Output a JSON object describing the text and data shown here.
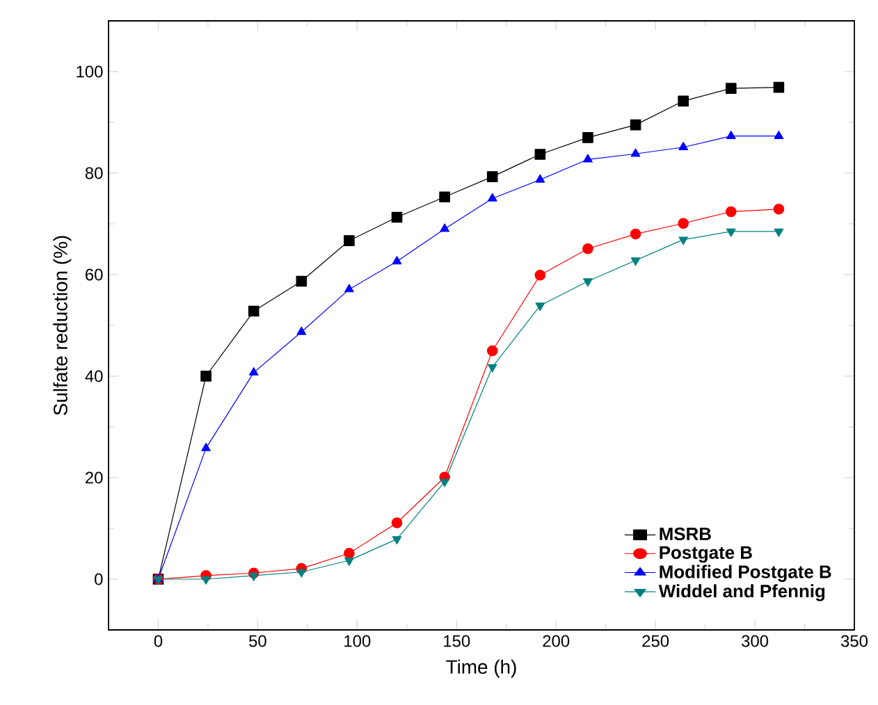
{
  "chart_data": {
    "type": "line",
    "xlabel": "Time (h)",
    "ylabel": "Sulfate reduction (%)",
    "x": [
      0,
      24,
      48,
      72,
      96,
      120,
      144,
      168,
      192,
      216,
      240,
      264,
      288,
      312
    ],
    "series": [
      {
        "name": "MSRB",
        "color": "#000000",
        "marker": "square",
        "values": [
          0,
          40,
          52.8,
          58.7,
          66.7,
          71.3,
          75.3,
          79.3,
          83.7,
          87.0,
          89.5,
          94.2,
          96.7,
          96.9
        ]
      },
      {
        "name": "Postgate B",
        "color": "#ff0000",
        "marker": "circle",
        "values": [
          0,
          0.7,
          1.2,
          2.1,
          5.1,
          11.1,
          20.1,
          45.0,
          59.9,
          65.1,
          68.0,
          70.1,
          72.4,
          72.9
        ]
      },
      {
        "name": "Modified Postgate B",
        "color": "#0000ff",
        "marker": "triangle",
        "values": [
          0,
          25.8,
          40.7,
          48.7,
          57.1,
          62.6,
          69.0,
          75.0,
          78.7,
          82.7,
          83.8,
          85.1,
          87.3,
          87.3
        ]
      },
      {
        "name": "Widdel and Pfennig",
        "color": "#008080",
        "marker": "triangle-down",
        "values": [
          0,
          0,
          0.7,
          1.4,
          3.7,
          7.9,
          19.2,
          41.8,
          53.9,
          58.7,
          62.8,
          66.9,
          68.5,
          68.5
        ]
      }
    ],
    "xlim": [
      -25,
      350
    ],
    "ylim": [
      -10,
      110
    ],
    "xticks": [
      0,
      50,
      100,
      150,
      200,
      250,
      300,
      350
    ],
    "yticks": [
      0,
      20,
      40,
      60,
      80,
      100
    ],
    "grid": false,
    "legend": "bottom right",
    "line_style": "solid"
  }
}
